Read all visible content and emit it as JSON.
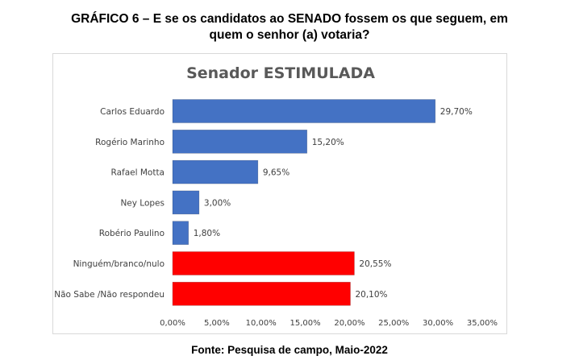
{
  "header": {
    "line1": "GRÁFICO 6 – E se os candidatos ao SENADO fossem os que seguem, em",
    "line2": "quem o senhor (a) votaria?"
  },
  "footer": {
    "source": "Fonte: Pesquisa de campo, Maio-2022"
  },
  "chart_data": {
    "type": "bar",
    "orientation": "horizontal",
    "title": "Senador ESTIMULADA",
    "xlabel": "",
    "ylabel": "",
    "xlim": [
      0,
      35
    ],
    "grid": false,
    "legend": "none",
    "categories": [
      "Carlos Eduardo",
      "Rogério Marinho",
      "Rafael Motta",
      "Ney Lopes",
      "Robério Paulino",
      "Ninguém/branco/nulo",
      "Não Sabe /Não respondeu"
    ],
    "values": [
      29.7,
      15.2,
      9.65,
      3.0,
      1.8,
      20.55,
      20.1
    ],
    "value_labels": [
      "29,70%",
      "15,20%",
      "9,65%",
      "3,00%",
      "1,80%",
      "20,55%",
      "20,10%"
    ],
    "bar_colors": [
      "#4472c4",
      "#4472c4",
      "#4472c4",
      "#4472c4",
      "#4472c4",
      "#ff0000",
      "#ff0000"
    ],
    "x_ticks": [
      0,
      5,
      10,
      15,
      20,
      25,
      30,
      35
    ],
    "x_tick_labels": [
      "0,00%",
      "5,00%",
      "10,00%",
      "15,00%",
      "20,00%",
      "25,00%",
      "30,00%",
      "35,00%"
    ]
  }
}
